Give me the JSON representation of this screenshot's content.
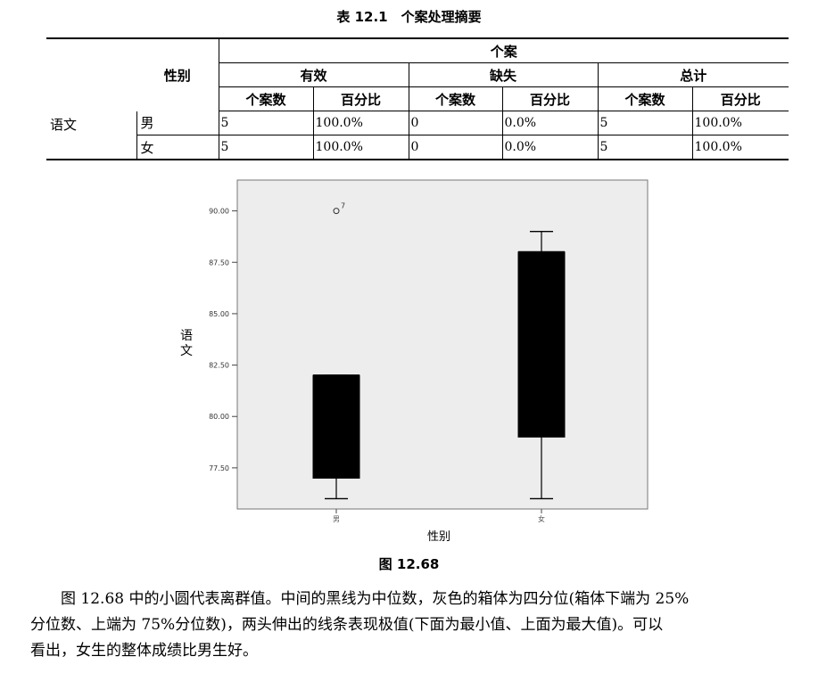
{
  "table": {
    "caption": "表 12.1　个案处理摘要",
    "header": {
      "group": "个案",
      "gender": "性别",
      "valid": "有效",
      "missing": "缺失",
      "total": "总计",
      "count": "个案数",
      "percent": "百分比"
    },
    "row_label": "语文",
    "rows": [
      {
        "gender": "男",
        "valid_n": "5",
        "valid_pct": "100.0%",
        "missing_n": "0",
        "missing_pct": "0.0%",
        "total_n": "5",
        "total_pct": "100.0%"
      },
      {
        "gender": "女",
        "valid_n": "5",
        "valid_pct": "100.0%",
        "missing_n": "0",
        "missing_pct": "0.0%",
        "total_n": "5",
        "total_pct": "100.0%"
      }
    ]
  },
  "chart_data": {
    "type": "box",
    "ylabel": "语文",
    "xlabel": "性别",
    "ylim": [
      75.5,
      91.5
    ],
    "yticks": [
      77.5,
      80.0,
      82.5,
      85.0,
      87.5,
      90.0
    ],
    "ytick_labels": [
      "77.50",
      "80.00",
      "82.50",
      "85.00",
      "87.50",
      "90.00"
    ],
    "categories": [
      "男",
      "女"
    ],
    "boxes": [
      {
        "category": "男",
        "min": 76.0,
        "q1": 77.0,
        "median": 82.0,
        "q3": 82.0,
        "max": 82.0,
        "outliers": [
          {
            "value": 90.0,
            "label": "7"
          }
        ]
      },
      {
        "category": "女",
        "min": 76.0,
        "q1": 79.0,
        "median": 88.0,
        "q3": 88.0,
        "max": 89.0,
        "outliers": []
      }
    ],
    "colors": {
      "plot_bg": "#ededed",
      "box": "#000000"
    }
  },
  "figure": {
    "caption": "图 12.68"
  },
  "paragraph": {
    "line1": "图 12.68 中的小圆代表离群值。中间的黑线为中位数，灰色的箱体为四分位(箱体下端为 25%",
    "line2": "分位数、上端为 75%分位数)，两头伸出的线条表现极值(下面为最小值、上面为最大值)。可以",
    "line3": "看出，女生的整体成绩比男生好。"
  }
}
